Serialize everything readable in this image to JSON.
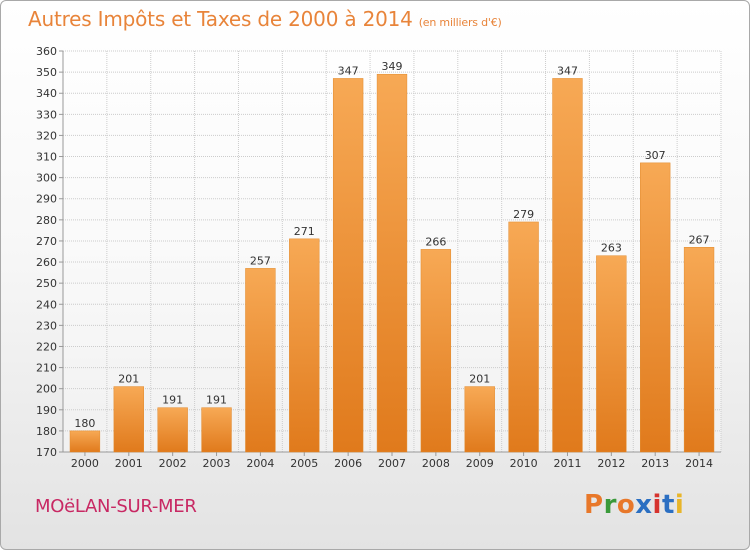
{
  "chart_data": {
    "type": "bar",
    "title": "Autres Impôts et Taxes de 2000 à 2014",
    "unit": "(en milliers d'€)",
    "categories": [
      "2000",
      "2001",
      "2002",
      "2003",
      "2004",
      "2005",
      "2006",
      "2007",
      "2008",
      "2009",
      "2010",
      "2011",
      "2012",
      "2013",
      "2014"
    ],
    "values": [
      180,
      201,
      191,
      191,
      257,
      271,
      347,
      349,
      266,
      201,
      279,
      347,
      263,
      307,
      267
    ],
    "ylim": [
      170,
      360
    ],
    "ytick_step": 10,
    "grid": true,
    "bar_color": "#f0932f"
  },
  "footer": {
    "commune": "MOëLAN-SUR-MER",
    "logo_text": "Proxiti",
    "logo_colors": [
      "#e8782a",
      "#3a9a3a",
      "#e8782a",
      "#2b6fc2",
      "#d6332e",
      "#2b6fc2",
      "#e8b52a"
    ]
  }
}
